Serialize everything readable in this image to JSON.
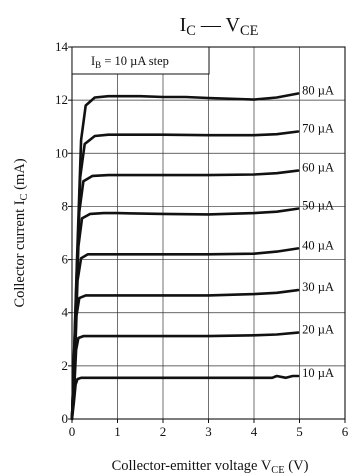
{
  "chart_data": {
    "type": "line",
    "title": {
      "main": "I",
      "main_sub": "C",
      "sep": " — V",
      "sep_sub": "CE"
    },
    "xlabel": {
      "text": "Collector-emitter voltage  V",
      "sub": "CE",
      "unit": "  (V)"
    },
    "ylabel": {
      "text": "Collector current  I",
      "sub": "C",
      "unit": "  (mA)"
    },
    "annotation": {
      "text": "I",
      "sub": "B",
      "rest": " = 10 µA step"
    },
    "xlim": [
      0,
      6
    ],
    "ylim": [
      0,
      14
    ],
    "xticks": [
      0,
      1,
      2,
      3,
      4,
      5,
      6
    ],
    "yticks": [
      0,
      2,
      4,
      6,
      8,
      10,
      12,
      14
    ],
    "grid": true,
    "series": [
      {
        "name": "10 µA",
        "points": [
          [
            0,
            0
          ],
          [
            0.04,
            0.6
          ],
          [
            0.08,
            1.3
          ],
          [
            0.12,
            1.5
          ],
          [
            0.2,
            1.55
          ],
          [
            0.5,
            1.55
          ],
          [
            1,
            1.55
          ],
          [
            2,
            1.55
          ],
          [
            3,
            1.55
          ],
          [
            4,
            1.55
          ],
          [
            4.4,
            1.55
          ],
          [
            4.5,
            1.62
          ],
          [
            4.7,
            1.55
          ],
          [
            4.85,
            1.62
          ],
          [
            4.97,
            1.62
          ]
        ]
      },
      {
        "name": "20 µA",
        "points": [
          [
            0,
            0
          ],
          [
            0.05,
            1.2
          ],
          [
            0.09,
            2.6
          ],
          [
            0.14,
            3.05
          ],
          [
            0.25,
            3.12
          ],
          [
            0.5,
            3.12
          ],
          [
            1,
            3.12
          ],
          [
            2,
            3.12
          ],
          [
            3,
            3.12
          ],
          [
            4,
            3.15
          ],
          [
            4.5,
            3.18
          ],
          [
            4.97,
            3.25
          ]
        ]
      },
      {
        "name": "30 µA",
        "points": [
          [
            0,
            0
          ],
          [
            0.06,
            2.0
          ],
          [
            0.1,
            3.9
          ],
          [
            0.16,
            4.55
          ],
          [
            0.3,
            4.65
          ],
          [
            0.5,
            4.65
          ],
          [
            1,
            4.65
          ],
          [
            2,
            4.65
          ],
          [
            3,
            4.65
          ],
          [
            4,
            4.7
          ],
          [
            4.5,
            4.75
          ],
          [
            4.97,
            4.85
          ]
        ]
      },
      {
        "name": "40 µA",
        "points": [
          [
            0,
            0
          ],
          [
            0.07,
            2.8
          ],
          [
            0.12,
            5.2
          ],
          [
            0.2,
            6.05
          ],
          [
            0.35,
            6.2
          ],
          [
            0.6,
            6.2
          ],
          [
            1,
            6.2
          ],
          [
            2,
            6.2
          ],
          [
            3,
            6.2
          ],
          [
            4,
            6.22
          ],
          [
            4.5,
            6.3
          ],
          [
            4.97,
            6.42
          ]
        ]
      },
      {
        "name": "50 µA",
        "points": [
          [
            0,
            0
          ],
          [
            0.08,
            3.6
          ],
          [
            0.14,
            6.5
          ],
          [
            0.22,
            7.55
          ],
          [
            0.4,
            7.72
          ],
          [
            0.7,
            7.75
          ],
          [
            1,
            7.75
          ],
          [
            2,
            7.72
          ],
          [
            3,
            7.7
          ],
          [
            4,
            7.75
          ],
          [
            4.5,
            7.8
          ],
          [
            4.97,
            7.92
          ]
        ]
      },
      {
        "name": "60 µA",
        "points": [
          [
            0,
            0
          ],
          [
            0.09,
            4.4
          ],
          [
            0.16,
            7.8
          ],
          [
            0.25,
            8.95
          ],
          [
            0.45,
            9.15
          ],
          [
            0.8,
            9.18
          ],
          [
            1,
            9.18
          ],
          [
            2,
            9.18
          ],
          [
            3,
            9.18
          ],
          [
            4,
            9.2
          ],
          [
            4.5,
            9.25
          ],
          [
            4.97,
            9.35
          ]
        ]
      },
      {
        "name": "70 µA",
        "points": [
          [
            0,
            0
          ],
          [
            0.1,
            5.2
          ],
          [
            0.18,
            9.1
          ],
          [
            0.28,
            10.35
          ],
          [
            0.5,
            10.65
          ],
          [
            0.8,
            10.7
          ],
          [
            1,
            10.7
          ],
          [
            2,
            10.7
          ],
          [
            3,
            10.68
          ],
          [
            4,
            10.68
          ],
          [
            4.5,
            10.72
          ],
          [
            4.97,
            10.82
          ]
        ]
      },
      {
        "name": "80 µA",
        "points": [
          [
            0,
            0
          ],
          [
            0.11,
            6.0
          ],
          [
            0.2,
            10.5
          ],
          [
            0.3,
            11.8
          ],
          [
            0.5,
            12.1
          ],
          [
            0.8,
            12.15
          ],
          [
            1.5,
            12.15
          ],
          [
            2,
            12.12
          ],
          [
            2.5,
            12.12
          ],
          [
            3,
            12.08
          ],
          [
            3.5,
            12.05
          ],
          [
            4,
            12.02
          ],
          [
            4.5,
            12.1
          ],
          [
            4.97,
            12.25
          ]
        ]
      }
    ]
  }
}
